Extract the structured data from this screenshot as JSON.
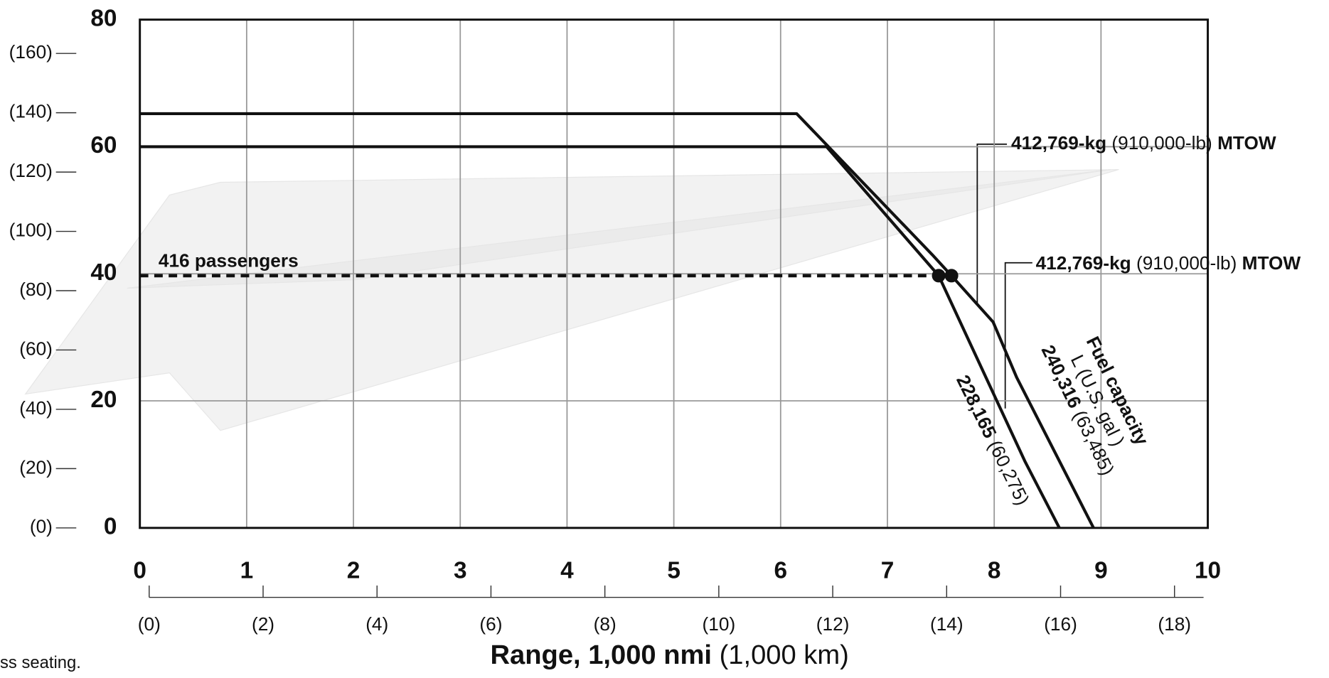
{
  "chart_data": {
    "type": "line",
    "xlabel": {
      "bold": "Range, 1,000 nmi",
      "light": "(1,000 km)"
    },
    "xlim": [
      0,
      10
    ],
    "xticks": [
      0,
      1,
      2,
      3,
      4,
      5,
      6,
      7,
      8,
      9,
      10
    ],
    "x2lim": [
      0,
      18.51
    ],
    "x2ticks": [
      {
        "value": 0,
        "label": "(0)"
      },
      {
        "value": 2,
        "label": "(2)"
      },
      {
        "value": 4,
        "label": "(4)"
      },
      {
        "value": 6,
        "label": "(6)"
      },
      {
        "value": 8,
        "label": "(8)"
      },
      {
        "value": 10,
        "label": "(10)"
      },
      {
        "value": 12,
        "label": "(12)"
      },
      {
        "value": 14,
        "label": "(14)"
      },
      {
        "value": 16,
        "label": "(16)"
      },
      {
        "value": 18,
        "label": "(18)"
      }
    ],
    "ylim": [
      0,
      80
    ],
    "yticks": [
      0,
      20,
      40,
      60,
      80
    ],
    "y2lim": [
      0,
      171.4
    ],
    "y2ticks": [
      {
        "value": 0,
        "label": "(0)"
      },
      {
        "value": 20,
        "label": "(20)"
      },
      {
        "value": 40,
        "label": "(40)"
      },
      {
        "value": 60,
        "label": "(60)"
      },
      {
        "value": 80,
        "label": "(80)"
      },
      {
        "value": 100,
        "label": "(100)"
      },
      {
        "value": 120,
        "label": "(120)"
      },
      {
        "value": 140,
        "label": "(140)"
      },
      {
        "value": 160,
        "label": "(160)"
      }
    ],
    "grid": true,
    "series": [
      {
        "color": "#111111",
        "x": [
          0,
          6.15,
          7.42,
          7.6,
          7.99,
          8.21,
          8.93
        ],
        "values": [
          65.2,
          65.2,
          43,
          39.7,
          32.4,
          23.7,
          0
        ]
      },
      {
        "color": "#111111",
        "x": [
          0,
          6.43,
          7.48,
          8.29,
          8.61
        ],
        "values": [
          60,
          60,
          39.7,
          10.4,
          0
        ]
      },
      {
        "name": "416 passengers",
        "color": "#111111",
        "dashed": true,
        "x": [
          0,
          7.48
        ],
        "values": [
          39.7,
          39.7
        ]
      }
    ],
    "markers": [
      {
        "x": 7.48,
        "y": 39.7
      },
      {
        "x": 7.6,
        "y": 39.7
      }
    ],
    "annotations": [
      {
        "parts": [
          "412,769-kg",
          "(910,000-lb)",
          "MTOW"
        ]
      },
      {
        "parts": [
          "412,769-kg",
          "(910,000-lb)",
          "MTOW"
        ]
      },
      {
        "title": "Fuel capacity",
        "unit": "L (U.S. gal )",
        "bold": "240,316",
        "light": "(63,485)"
      },
      {
        "bold": "228,165",
        "light": "(60,275)"
      }
    ],
    "footnote": "ss seating."
  }
}
